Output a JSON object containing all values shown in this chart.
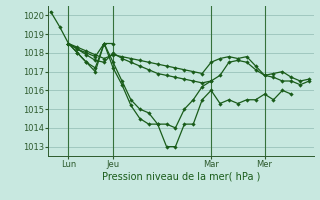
{
  "background_color": "#c8e8e0",
  "grid_color": "#a0c8c0",
  "line_color": "#1a5c1a",
  "title": "Pression niveau de la mer( hPa )",
  "ylim": [
    1012.5,
    1020.5
  ],
  "yticks": [
    1013,
    1014,
    1015,
    1016,
    1017,
    1018,
    1019,
    1020
  ],
  "xlim": [
    -0.3,
    29.5
  ],
  "xtick_positions": [
    2,
    7,
    18,
    24
  ],
  "xtick_labels": [
    "Lun",
    "Jeu",
    "Mar",
    "Mer"
  ],
  "vline_positions": [
    2,
    7,
    18,
    24
  ],
  "series": [
    {
      "x": [
        2,
        3,
        4,
        5,
        6,
        7,
        8,
        9,
        10,
        11,
        12,
        13,
        14,
        15,
        16,
        17,
        18,
        19,
        20,
        21,
        22,
        23,
        24,
        25,
        26,
        27,
        28,
        29
      ],
      "y": [
        1018.5,
        1018.3,
        1018.1,
        1017.9,
        1017.7,
        1017.9,
        1017.8,
        1017.7,
        1017.6,
        1017.5,
        1017.4,
        1017.3,
        1017.2,
        1017.1,
        1017.0,
        1016.9,
        1017.5,
        1017.7,
        1017.8,
        1017.7,
        1017.8,
        1017.3,
        1016.8,
        1016.9,
        1017.0,
        1016.7,
        1016.5,
        1016.6
      ]
    },
    {
      "x": [
        2,
        3,
        4,
        5,
        6,
        7,
        8,
        9,
        10,
        11,
        12,
        13,
        14,
        15,
        16,
        17,
        18,
        19,
        20,
        21,
        22,
        23,
        24,
        25,
        26,
        27,
        28,
        29
      ],
      "y": [
        1018.5,
        1018.2,
        1017.9,
        1017.6,
        1017.5,
        1018.0,
        1017.7,
        1017.5,
        1017.3,
        1017.1,
        1016.9,
        1016.8,
        1016.7,
        1016.6,
        1016.5,
        1016.4,
        1016.5,
        1016.8,
        1017.5,
        1017.6,
        1017.5,
        1017.1,
        1016.8,
        1016.7,
        1016.5,
        1016.5,
        1016.3,
        1016.5
      ]
    },
    {
      "x": [
        0,
        1,
        2,
        3,
        4,
        5,
        6,
        7
      ],
      "y": [
        1020.2,
        1019.4,
        1018.5,
        1018.2,
        1018.0,
        1017.8,
        1018.5,
        1018.5
      ]
    },
    {
      "x": [
        2,
        3,
        4,
        5,
        6,
        7,
        8,
        9,
        10,
        11,
        12,
        13,
        14,
        15,
        16,
        17,
        18,
        19,
        20,
        21,
        22,
        23,
        24,
        25,
        26,
        27
      ],
      "y": [
        1018.5,
        1018.0,
        1017.5,
        1017.0,
        1018.5,
        1017.2,
        1016.3,
        1015.2,
        1014.5,
        1014.2,
        1014.2,
        1013.0,
        1013.0,
        1014.2,
        1014.2,
        1015.5,
        1016.0,
        1015.3,
        1015.5,
        1015.3,
        1015.5,
        1015.5,
        1015.8,
        1015.5,
        1016.0,
        1015.8
      ]
    },
    {
      "x": [
        2,
        3,
        4,
        5,
        6,
        7,
        8,
        9,
        10,
        11,
        12,
        13,
        14,
        15,
        16,
        17,
        18
      ],
      "y": [
        1018.5,
        1018.0,
        1017.5,
        1017.2,
        1018.5,
        1017.5,
        1016.5,
        1015.5,
        1015.0,
        1014.8,
        1014.2,
        1014.2,
        1014.0,
        1015.0,
        1015.5,
        1016.2,
        1016.5
      ]
    }
  ]
}
